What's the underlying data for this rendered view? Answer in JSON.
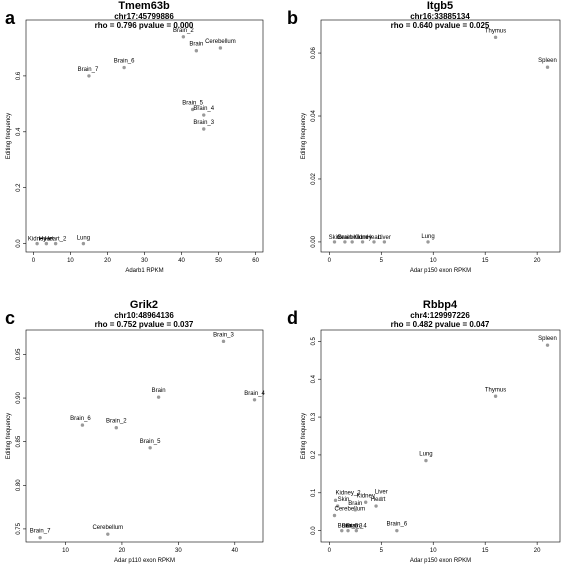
{
  "chart_data": [
    {
      "type": "scatter",
      "panel_letter": "a",
      "title": "Tmem63b",
      "subtitle": "chr17:45799886",
      "stats": "rho = 0.796 pvalue = 0.000",
      "xlabel": "Adarb1 RPKM",
      "ylabel": "Editing frequency",
      "xlim": [
        -2,
        62
      ],
      "ylim": [
        -0.03,
        0.8
      ],
      "xticks": [
        0,
        10,
        20,
        30,
        40,
        50,
        60
      ],
      "yticks": [
        0.0,
        0.2,
        0.4,
        0.6
      ],
      "points": [
        {
          "label": "Brain_2",
          "x": 40.5,
          "y": 0.74
        },
        {
          "label": "Brain",
          "x": 44,
          "y": 0.69
        },
        {
          "label": "Cerebellum",
          "x": 50.5,
          "y": 0.7
        },
        {
          "label": "Brain_6",
          "x": 24.5,
          "y": 0.63
        },
        {
          "label": "Brain_7",
          "x": 15,
          "y": 0.6
        },
        {
          "label": "Brain_5",
          "x": 43,
          "y": 0.48
        },
        {
          "label": "Brain_4",
          "x": 46,
          "y": 0.46
        },
        {
          "label": "Brain_3",
          "x": 46,
          "y": 0.41
        },
        {
          "label": "Kidney",
          "x": 1,
          "y": 0.0
        },
        {
          "label": "Heart",
          "x": 3.5,
          "y": 0.0
        },
        {
          "label": "Heart_2",
          "x": 6,
          "y": 0.0
        },
        {
          "label": "Lung",
          "x": 13.5,
          "y": 0.0
        }
      ],
      "point_labels_display": [
        "Brain_2",
        "Brain",
        "Cerebellum",
        "Brain_6",
        "Brain_7",
        "Brain_5",
        "Brain_4",
        "Brain_3",
        "Kidney",
        "Heart",
        "Heart_2",
        "Lung"
      ]
    },
    {
      "type": "scatter",
      "panel_letter": "b",
      "title": "Itgb5",
      "subtitle": "chr16:33885134",
      "stats": "rho = 0.640 pvalue = 0.025",
      "xlabel": "Adar p150 exon RPKM",
      "ylabel": "Editing frequency",
      "xlim": [
        -0.8,
        22.2
      ],
      "ylim": [
        -0.0032,
        0.0705
      ],
      "xticks": [
        0,
        5,
        10,
        15,
        20
      ],
      "yticks": [
        0.0,
        0.02,
        0.04,
        0.06
      ],
      "points": [
        {
          "label": "Thymus",
          "x": 16,
          "y": 0.065
        },
        {
          "label": "Spleen",
          "x": 21,
          "y": 0.0555
        },
        {
          "label": "Skin",
          "x": 0.5,
          "y": 0.0
        },
        {
          "label": "Brain",
          "x": 1.5,
          "y": 0.0
        },
        {
          "label": "Cerebellum",
          "x": 2.2,
          "y": 0.0
        },
        {
          "label": "Kidney",
          "x": 3.2,
          "y": 0.0
        },
        {
          "label": "Heart",
          "x": 4.3,
          "y": 0.0
        },
        {
          "label": "Liver",
          "x": 5.3,
          "y": 0.0
        },
        {
          "label": "Lung",
          "x": 9.5,
          "y": 0.0
        }
      ],
      "point_labels_display": [
        "Thymus",
        "Spleen",
        "Skin",
        "Brain",
        "Cerebellum",
        "Kidney",
        "Heart",
        "Liver",
        "Lung"
      ]
    },
    {
      "type": "scatter",
      "panel_letter": "c",
      "title": "Grik2",
      "subtitle": "chr10:48964136",
      "stats": "rho = 0.752 pvalue = 0.037",
      "xlabel": "Adar p110 exon RPKM",
      "ylabel": "Editing frequency",
      "xlim": [
        3,
        45
      ],
      "ylim": [
        0.735,
        0.978
      ],
      "xticks": [
        10,
        20,
        30,
        40
      ],
      "yticks": [
        0.75,
        0.8,
        0.85,
        0.9,
        0.95
      ],
      "points": [
        {
          "label": "Brain_3",
          "x": 38,
          "y": 0.965
        },
        {
          "label": "Brain",
          "x": 26.5,
          "y": 0.901
        },
        {
          "label": "Brain_4",
          "x": 43.5,
          "y": 0.898
        },
        {
          "label": "Brain_6",
          "x": 13,
          "y": 0.869
        },
        {
          "label": "Brain_2",
          "x": 19,
          "y": 0.866
        },
        {
          "label": "Brain_5",
          "x": 25,
          "y": 0.843
        },
        {
          "label": "Cerebellum",
          "x": 17.5,
          "y": 0.744
        },
        {
          "label": "Brain_7",
          "x": 5.5,
          "y": 0.74
        }
      ]
    },
    {
      "type": "scatter",
      "panel_letter": "d",
      "title": "Rbbp4",
      "subtitle": "chr4:129997226",
      "stats": "rho = 0.482 pvalue = 0.047",
      "xlabel": "Adar p150 exon RPKM",
      "ylabel": "Editing frequency",
      "xlim": [
        -0.8,
        22.2
      ],
      "ylim": [
        -0.03,
        0.53
      ],
      "xticks": [
        0,
        5,
        10,
        15,
        20
      ],
      "yticks": [
        0.0,
        0.1,
        0.2,
        0.3,
        0.4,
        0.5
      ],
      "points": [
        {
          "label": "Spleen",
          "x": 21,
          "y": 0.49
        },
        {
          "label": "Thymus",
          "x": 16,
          "y": 0.355
        },
        {
          "label": "Lung",
          "x": 9.3,
          "y": 0.185
        },
        {
          "label": "Kidney_2",
          "x": 0.6,
          "y": 0.08
        },
        {
          "label": "Skin",
          "x": 0.8,
          "y": 0.065
        },
        {
          "label": "Cerebellum",
          "x": 0.5,
          "y": 0.04
        },
        {
          "label": "Brain",
          "x": 2.5,
          "y": 0.055
        },
        {
          "label": "Kidney",
          "x": 3.5,
          "y": 0.075
        },
        {
          "label": "Heart",
          "x": 4.5,
          "y": 0.065
        },
        {
          "label": "Liver",
          "x": 5.0,
          "y": 0.085
        },
        {
          "label": "Brain_3",
          "x": 1.2,
          "y": 0.0
        },
        {
          "label": "Brain_5",
          "x": 1.8,
          "y": 0.0
        },
        {
          "label": "Brain_4",
          "x": 2.6,
          "y": 0.0
        },
        {
          "label": "Brain_6",
          "x": 6.5,
          "y": 0.0
        }
      ],
      "point_labels_display": [
        "Spleen",
        "Thymus",
        "Lung",
        "Kidney_2",
        "Skin",
        "Cerebellum",
        "Brain",
        "Kidney",
        "Heart",
        "Liver",
        "Brain_3",
        "Brain_5",
        "Brain_4",
        "Brain_6"
      ]
    }
  ],
  "colors": {
    "point": "#9a9a9a",
    "axis": "#000000",
    "background": "#ffffff"
  }
}
